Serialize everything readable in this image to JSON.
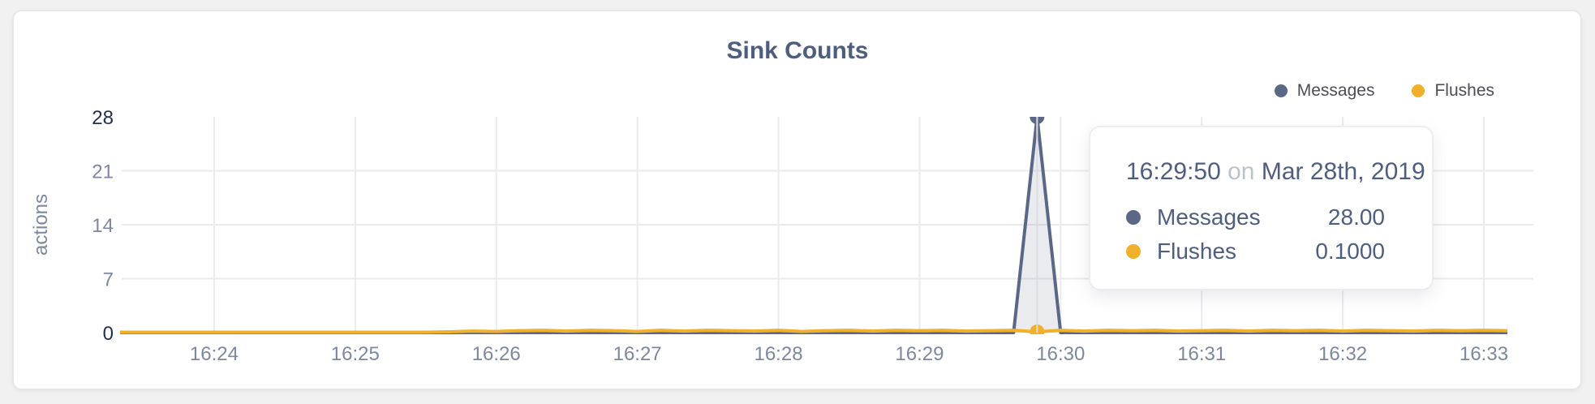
{
  "card": {
    "title": "Sink Counts"
  },
  "legend": {
    "items": [
      {
        "label": "Messages",
        "color": "#5b6787"
      },
      {
        "label": "Flushes",
        "color": "#f0b029"
      }
    ]
  },
  "tooltip": {
    "time": "16:29:50",
    "conjunction": "on",
    "date": "Mar 28th, 2019",
    "rows": [
      {
        "label": "Messages",
        "value": "28.00",
        "color": "#5b6787"
      },
      {
        "label": "Flushes",
        "value": "0.1000",
        "color": "#f0b029"
      }
    ]
  },
  "colors": {
    "page_background": "#f1f1f2",
    "card_background": "#ffffff",
    "grid": "#ebebed",
    "crosshair": "#dcdce0",
    "tick_mid": "#7d87a0",
    "tick_end": "#232f4e",
    "title_text": "#4e5e80"
  },
  "chart_data": {
    "type": "area",
    "title": "Sink Counts",
    "xlabel": "",
    "ylabel": "actions",
    "ylim": [
      0,
      28
    ],
    "yticks": [
      0,
      7,
      14,
      21,
      28
    ],
    "grid": true,
    "legend_position": "top-right",
    "x_start": "16:23:20",
    "x_interval_seconds": 10,
    "x_tick_labels": [
      "16:24",
      "16:25",
      "16:26",
      "16:27",
      "16:28",
      "16:29",
      "16:30",
      "16:31",
      "16:32",
      "16:33"
    ],
    "x_tick_indices": [
      4,
      10,
      16,
      22,
      28,
      34,
      40,
      46,
      52,
      58
    ],
    "hover": {
      "index": 39,
      "time": "16:29:50"
    },
    "series": [
      {
        "name": "Messages",
        "color": "#5b6787",
        "values": [
          0,
          0,
          0,
          0,
          0,
          0,
          0,
          0,
          0,
          0,
          0,
          0,
          0,
          0,
          0,
          0,
          0,
          0,
          0,
          0,
          0,
          0,
          0,
          0,
          0,
          0,
          0,
          0,
          0,
          0,
          0,
          0,
          0,
          0,
          0,
          0,
          0,
          0,
          0,
          28,
          0,
          0,
          0,
          0,
          0,
          0,
          0,
          0,
          0,
          0,
          0,
          0,
          0,
          0,
          0,
          0,
          0,
          0,
          0,
          0
        ]
      },
      {
        "name": "Flushes",
        "color": "#f0b029",
        "values": [
          0.05,
          0.05,
          0.05,
          0.05,
          0.05,
          0.05,
          0.05,
          0.05,
          0.05,
          0.05,
          0.05,
          0.05,
          0.05,
          0.05,
          0.1,
          0.2,
          0.15,
          0.25,
          0.3,
          0.2,
          0.3,
          0.25,
          0.15,
          0.3,
          0.2,
          0.3,
          0.25,
          0.2,
          0.3,
          0.15,
          0.25,
          0.3,
          0.2,
          0.3,
          0.25,
          0.3,
          0.2,
          0.25,
          0.3,
          0.1,
          0.3,
          0.2,
          0.3,
          0.25,
          0.3,
          0.2,
          0.25,
          0.3,
          0.2,
          0.3,
          0.25,
          0.3,
          0.2,
          0.3,
          0.25,
          0.2,
          0.3,
          0.25,
          0.3,
          0.25
        ]
      }
    ]
  }
}
